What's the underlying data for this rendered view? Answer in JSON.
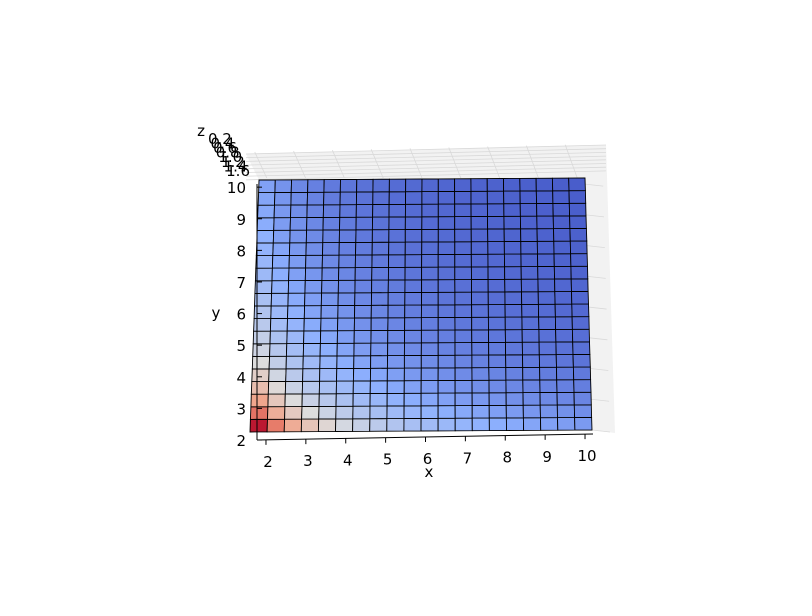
{
  "chart_data": {
    "type": "surface3d",
    "title": "",
    "xlabel": "x",
    "ylabel": "y",
    "zlabel": "z",
    "xlim": [
      1.8,
      10.2
    ],
    "ylim": [
      2,
      10.2
    ],
    "zlim": [
      0.2,
      1.6
    ],
    "x_ticks": [
      "2",
      "3",
      "4",
      "5",
      "6",
      "7",
      "8",
      "9",
      "10"
    ],
    "y_ticks": [
      "2",
      "3",
      "4",
      "5",
      "6",
      "7",
      "8",
      "9",
      "10"
    ],
    "z_ticks": [
      "0.2",
      "0.4",
      "0.6",
      "0.8",
      "1.0",
      "1.2",
      "1.4",
      "1.6"
    ],
    "grid_x": [
      1.8,
      10.2,
      20
    ],
    "grid_y": [
      2,
      10.2,
      20
    ],
    "colormap": "coolwarm",
    "colormap_stops": [
      "#3b4cc0",
      "#8db0fe",
      "#dddddd",
      "#f49a7b",
      "#b40426"
    ],
    "edge_color": "#000000",
    "pane_color": "#f2f2f2",
    "grid_color": "#d9d9d9",
    "note": ""
  }
}
